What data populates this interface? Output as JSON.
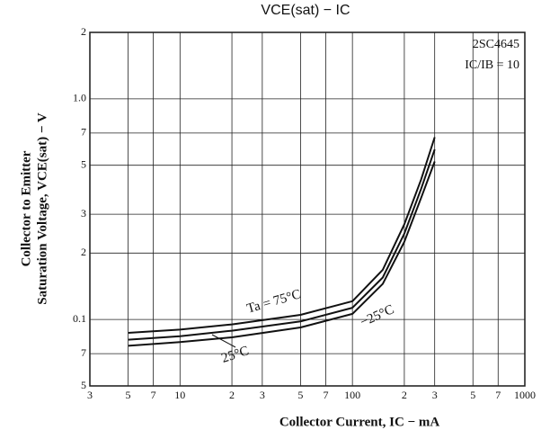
{
  "chart_data": {
    "type": "line",
    "title": "VCE(sat)  −  IC",
    "x_label": "Collector Current, IC − mA",
    "y_label": [
      "Collector to Emitter",
      "Saturation Voltage, VCE(sat) − V"
    ],
    "annotations": [
      "2SC4645",
      "IC/IB = 10"
    ],
    "log_x": true,
    "log_y": true,
    "grid": true,
    "x": [
      5,
      10,
      20,
      50,
      100,
      150,
      200,
      250,
      300
    ],
    "series": [
      {
        "name": "Ta = 75°C",
        "color": "#111111",
        "values": [
          0.087,
          0.09,
          0.095,
          0.105,
          0.121,
          0.168,
          0.27,
          0.43,
          0.67
        ]
      },
      {
        "name": "−25°C",
        "color": "#111111",
        "values": [
          0.081,
          0.084,
          0.089,
          0.098,
          0.113,
          0.155,
          0.245,
          0.39,
          0.59
        ]
      },
      {
        "name": "25°C",
        "color": "#111111",
        "values": [
          0.076,
          0.079,
          0.083,
          0.092,
          0.106,
          0.145,
          0.225,
          0.355,
          0.52
        ]
      }
    ],
    "xlim": [
      3,
      1000
    ],
    "xticks": [
      3,
      5,
      7,
      10,
      {
        "value": 20,
        "label": "2"
      },
      {
        "value": 30,
        "label": "3"
      },
      {
        "value": 50,
        "label": "5"
      },
      {
        "value": 70,
        "label": "7"
      },
      100,
      {
        "value": 200,
        "label": "2"
      },
      {
        "value": 300,
        "label": "3"
      },
      {
        "value": 500,
        "label": "5"
      },
      {
        "value": 700,
        "label": "7"
      },
      1000
    ],
    "ylim": [
      0.05,
      2
    ],
    "yticks": [
      2,
      {
        "value": 1,
        "label": "1.0"
      },
      {
        "value": 0.7,
        "label": "7"
      },
      {
        "value": 0.5,
        "label": "5"
      },
      {
        "value": 0.3,
        "label": "3"
      },
      {
        "value": 0.2,
        "label": "2"
      },
      0.1,
      {
        "value": 0.07,
        "label": "7"
      },
      {
        "value": 0.05,
        "label": "5"
      }
    ]
  }
}
